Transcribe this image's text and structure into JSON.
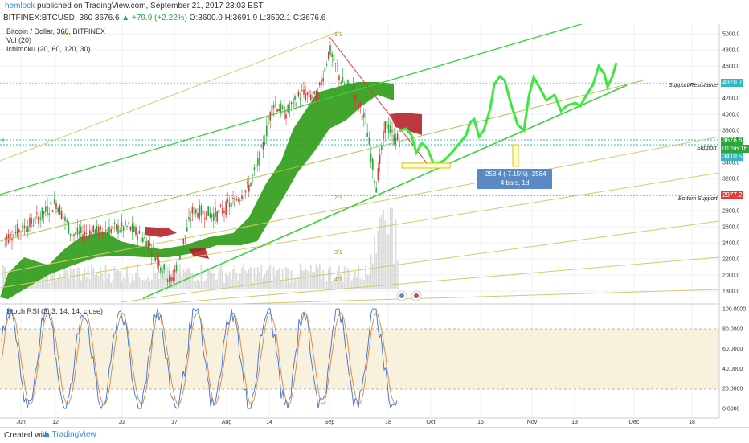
{
  "header": {
    "author": "hemlock",
    "published": "published on TradingView.com, September 21, 2017 23:03 EST",
    "symbol": "BITFINEX:BTCUSD, 360",
    "last": "3676.6",
    "change": "▲ +79.9 (+2.22%)",
    "ohlc": "O:3600.0  H:3691.9  L:3592.1  C:3676.6"
  },
  "legend": {
    "title": "Bitcoin / Dollar, 360, BITFINEX",
    "vol": "Vol (20)",
    "ichimoku": "Ichimoku (20, 60, 120, 30)",
    "stoch": "Stoch RSI (3, 3, 14, 14, close)"
  },
  "price_axis": [
    "5000.0",
    "4800.0",
    "4600.0",
    "4400.0",
    "4200.0",
    "4000.0",
    "3800.0",
    "3600.0",
    "3400.0",
    "3200.0",
    "3000.0",
    "2800.0",
    "2600.0",
    "2400.0",
    "2200.0",
    "2000.0",
    "1800.0"
  ],
  "osc_axis": [
    "100.0000",
    "80.0000",
    "60.0000",
    "40.0000",
    "20.0000",
    "0.0000"
  ],
  "time_axis": [
    "Jun",
    "12",
    "Jul",
    "17",
    "Aug",
    "14",
    "Sep",
    "18",
    "Oct",
    "16",
    "Nov",
    "13",
    "Dec",
    "18"
  ],
  "price_tags": {
    "resistance": "4370.7",
    "last": "3676.6",
    "countdown": "01:56:16",
    "support_val": "3410.5",
    "bottom": "2977.2"
  },
  "notes": {
    "support_resistance": "Support/Resistance",
    "support": "Support",
    "bottom_support": "Bottom Support"
  },
  "fib_labels": [
    "1/1",
    "1/2",
    "2/1",
    "3/1",
    "4/1"
  ],
  "measure": {
    "line1": "-258.4 (-7.15%) -2584",
    "line2": "4 bars, 1d"
  },
  "footer": {
    "created": "Created with",
    "brand": "TradingView"
  },
  "colors": {
    "up": "#2aa63a",
    "down": "#d23b3b",
    "cloud_green": "#2d9b16",
    "projection": "#3de83d",
    "fan": "#d6c96a",
    "stoch_k": "#3b6fd6",
    "stoch_d": "#e0853a"
  }
}
